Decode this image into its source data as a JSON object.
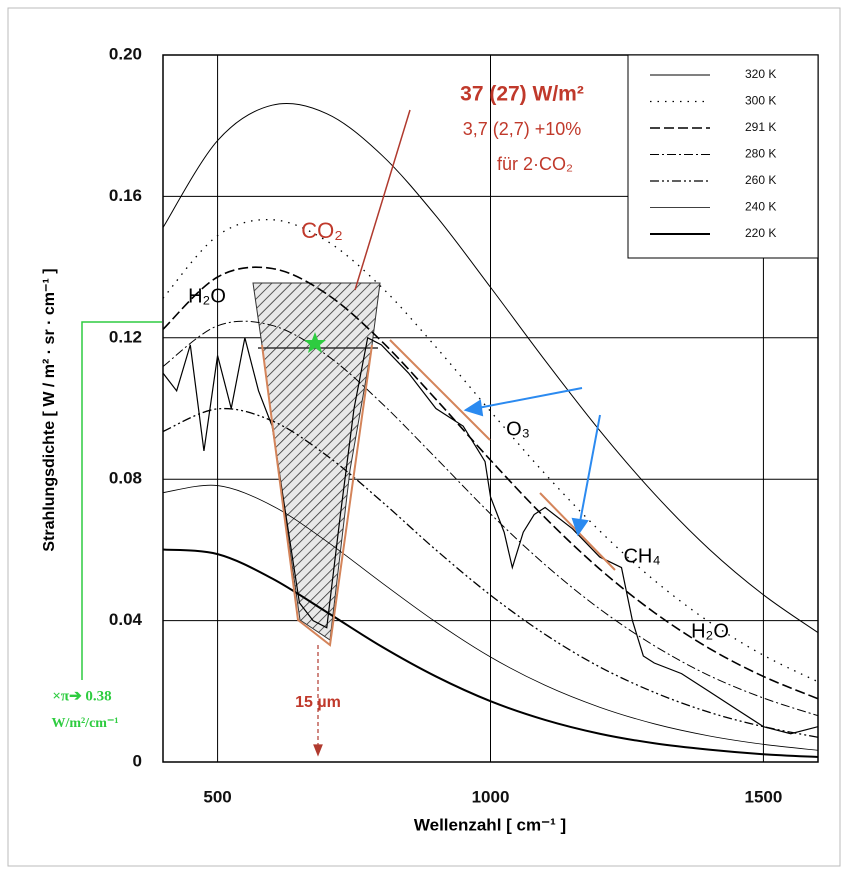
{
  "chart_data": {
    "type": "line",
    "x_label": "Wellenzahl [ cm⁻¹ ]",
    "y_label": "Strahlungsdichte [ W / m² · sr · cm⁻¹ ]",
    "xlim": [
      400,
      1600
    ],
    "ylim": [
      0,
      0.2
    ],
    "xticks": [
      500,
      1000,
      1500
    ],
    "yticks": [
      0,
      0.04,
      0.08,
      0.12,
      0.16,
      {
        "value": 0.2,
        "label": "0.20"
      }
    ],
    "grid": true,
    "legend": "upper right",
    "x": [
      400,
      500,
      600,
      700,
      800,
      900,
      1000,
      1100,
      1200,
      1300,
      1400,
      1500,
      1600
    ],
    "series": [
      {
        "name": "320 K",
        "color": "#000000",
        "dash": "solid",
        "line_width": 1,
        "values": [
          0.1512,
          0.1758,
          0.1858,
          0.1834,
          0.1718,
          0.1545,
          0.1343,
          0.1136,
          0.0938,
          0.0759,
          0.0603,
          0.0473,
          0.0366
        ]
      },
      {
        "name": "300 K",
        "color": "#000000",
        "dash": "dotted",
        "line_width": 1.3,
        "values": [
          0.1312,
          0.1489,
          0.1534,
          0.1474,
          0.1344,
          0.1174,
          0.0992,
          0.0815,
          0.0654,
          0.0514,
          0.0397,
          0.0302,
          0.0227
        ]
      },
      {
        "name": "291 K",
        "color": "#000000",
        "dash": "dashed",
        "line_width": 1.6,
        "values": [
          0.1224,
          0.1372,
          0.1396,
          0.1324,
          0.1191,
          0.1026,
          0.0854,
          0.0691,
          0.0546,
          0.0423,
          0.0322,
          0.0242,
          0.0179
        ]
      },
      {
        "name": "280 K",
        "color": "#000000",
        "dash": "dashdot",
        "line_width": 1,
        "values": [
          0.1119,
          0.1234,
          0.1235,
          0.1151,
          0.1016,
          0.086,
          0.0702,
          0.0558,
          0.0433,
          0.0329,
          0.0245,
          0.0181,
          0.0131
        ]
      },
      {
        "name": "260 K",
        "color": "#000000",
        "dash": "dashdotdot",
        "line_width": 1.3,
        "values": [
          0.0935,
          0.0999,
          0.0965,
          0.0867,
          0.0738,
          0.06,
          0.0472,
          0.0361,
          0.0269,
          0.0197,
          0.0141,
          0.01,
          0.007
        ]
      },
      {
        "name": "240 K",
        "color": "#000000",
        "dash": "solid",
        "line_width": 0.8,
        "values": [
          0.0762,
          0.0782,
          0.0725,
          0.0624,
          0.0508,
          0.0396,
          0.0297,
          0.0217,
          0.0155,
          0.0108,
          0.0074,
          0.005,
          0.0033
        ]
      },
      {
        "name": "220 K",
        "color": "#000000",
        "dash": "solid",
        "line_width": 2,
        "values": [
          0.0601,
          0.0588,
          0.0519,
          0.0424,
          0.0327,
          0.0242,
          0.0172,
          0.0119,
          0.008,
          0.0053,
          0.0035,
          0.0022,
          0.0014
        ]
      }
    ],
    "spectrum": {
      "color": "#000000",
      "x": [
        400,
        425,
        450,
        475,
        500,
        525,
        550,
        575,
        600,
        625,
        650,
        675,
        700,
        725,
        750,
        775,
        800,
        850,
        900,
        950,
        990,
        1000,
        1025,
        1040,
        1060,
        1080,
        1100,
        1150,
        1200,
        1240,
        1260,
        1280,
        1300,
        1350,
        1400,
        1450,
        1500,
        1550,
        1600
      ],
      "values": [
        0.11,
        0.105,
        0.118,
        0.088,
        0.115,
        0.1,
        0.12,
        0.105,
        0.095,
        0.07,
        0.045,
        0.04,
        0.038,
        0.07,
        0.1,
        0.12,
        0.118,
        0.11,
        0.1,
        0.095,
        0.085,
        0.075,
        0.065,
        0.055,
        0.065,
        0.07,
        0.072,
        0.066,
        0.058,
        0.055,
        0.04,
        0.03,
        0.028,
        0.025,
        0.02,
        0.015,
        0.01,
        0.008,
        0.01
      ]
    },
    "annotations": {
      "flux": "37 (27) W/m²",
      "change": "3,7 (2,7) +10%",
      "doubling": "für 2·CO₂",
      "co2": "CO₂",
      "h2o_left": "H₂O",
      "o3": "O₃",
      "ch4": "CH₄",
      "h2o_right": "H₂O",
      "wavelength": "15 µm",
      "pi_factor": "×π➔ 0.38",
      "pi_unit": "W/m²/cm⁻¹"
    }
  }
}
